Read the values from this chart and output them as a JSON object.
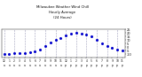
{
  "title": "Milwaukee Weather Wind Chill  Hourly Average  (24 Hours)",
  "title_line1": "Milwaukee Weather Wind Chill",
  "title_line2": "Hourly Average",
  "title_line3": "(24 Hours)",
  "x_hours": [
    0,
    1,
    2,
    3,
    4,
    5,
    6,
    7,
    8,
    9,
    10,
    11,
    12,
    13,
    14,
    15,
    16,
    17,
    18,
    19,
    20,
    21,
    22,
    23
  ],
  "y_values": [
    -10,
    -10,
    -9,
    -9,
    -8,
    -7,
    -6,
    -4,
    1,
    6,
    10,
    13,
    16,
    19,
    20,
    19,
    17,
    15,
    10,
    5,
    2,
    -1,
    -3,
    -5
  ],
  "dot_color": "#0000cc",
  "bg_color": "#ffffff",
  "grid_color": "#8888aa",
  "ylim_min": -15,
  "ylim_max": 25,
  "ytick_vals": [
    25,
    20,
    15,
    10,
    5,
    0,
    -5,
    -10
  ],
  "ytick_labels": [
    "25",
    "20",
    "15",
    "10",
    "5",
    "0",
    "-5",
    "-10"
  ],
  "xtick_labels": [
    "12",
    "1",
    "2",
    "3",
    "4",
    "5",
    "6",
    "7",
    "8",
    "9",
    "10",
    "11",
    "12",
    "1",
    "2",
    "3",
    "4",
    "5",
    "6",
    "7",
    "8",
    "9",
    "10",
    "11"
  ],
  "xtick_rows2": [
    "a",
    "a",
    "a",
    "a",
    "a",
    "a",
    "a",
    "a",
    "a",
    "a",
    "a",
    "a",
    "p",
    "p",
    "p",
    "p",
    "p",
    "p",
    "p",
    "p",
    "p",
    "p",
    "p",
    "p"
  ],
  "vgrid_positions": [
    0,
    2,
    4,
    6,
    8,
    10,
    12,
    14,
    16,
    18,
    20,
    22
  ]
}
